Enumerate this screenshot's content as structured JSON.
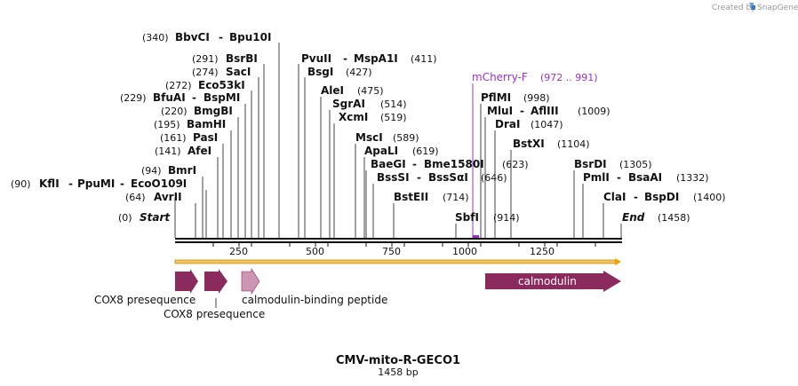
{
  "credit": "Created by",
  "brand": "SnapGene",
  "title": "CMV-mito-R-GECO1",
  "subtitle": "1458 bp",
  "colors": {
    "arrow_dark": "#8b2a5c",
    "arrow_light": "#cc95b4",
    "primer": "#9b30c8",
    "backbone": "#e9a000"
  },
  "ticks": [
    "250",
    "500",
    "750",
    "1000",
    "1250"
  ],
  "sites": [
    {
      "pos": "(340)",
      "name": "BbvCI",
      "alt": "Bpu10I"
    },
    {
      "pos": "(291)",
      "name": "BsrBI"
    },
    {
      "pos": "(274)",
      "name": "SacI"
    },
    {
      "pos": "(272)",
      "name": "Eco53kI"
    },
    {
      "pos": "(229)",
      "name": "BfuAI",
      "alt": "BspMI"
    },
    {
      "pos": "(220)",
      "name": "BmgBI"
    },
    {
      "pos": "(195)",
      "name": "BamHI"
    },
    {
      "pos": "(161)",
      "name": "PasI"
    },
    {
      "pos": "(141)",
      "name": "AfeI"
    },
    {
      "pos": "(94)",
      "name": "BmrI"
    },
    {
      "pos": "(90)",
      "name": "KflI",
      "alt": "PpuMI",
      "alt2": "EcoO109I"
    },
    {
      "pos": "(64)",
      "name": "AvrII"
    },
    {
      "pos": "(0)",
      "name": "Start"
    },
    {
      "name": "PvuII",
      "alt": "MspA1I",
      "pos": "(411)"
    },
    {
      "name": "BsgI",
      "pos": "(427)"
    },
    {
      "name": "AleI",
      "pos": "(475)"
    },
    {
      "name": "SgrAI",
      "pos": "(514)"
    },
    {
      "name": "XcmI",
      "pos": "(519)"
    },
    {
      "name": "MscI",
      "pos": "(589)"
    },
    {
      "name": "ApaLI",
      "pos": "(619)"
    },
    {
      "name": "BaeGI",
      "alt": "Bme1580I",
      "pos": "(623)"
    },
    {
      "name": "BssSI",
      "alt": "BssSαI",
      "pos": "(646)"
    },
    {
      "name": "BstEII",
      "pos": "(714)"
    },
    {
      "name": "SbfI",
      "pos": "(914)"
    },
    {
      "name": "PflMI",
      "pos": "(998)"
    },
    {
      "name": "MluI",
      "alt": "AflIII",
      "pos": "(1009)"
    },
    {
      "name": "DraI",
      "pos": "(1047)"
    },
    {
      "name": "BstXI",
      "pos": "(1104)"
    },
    {
      "name": "BsrDI",
      "pos": "(1305)"
    },
    {
      "name": "PmlI",
      "alt": "BsaAI",
      "pos": "(1332)"
    },
    {
      "name": "ClaI",
      "alt": "BspDI",
      "pos": "(1400)"
    },
    {
      "name": "End",
      "pos": "(1458)"
    }
  ],
  "primer": {
    "name": "mCherry-F",
    "range": "(972 .. 991)"
  },
  "features": [
    {
      "name": "COX8 presequence"
    },
    {
      "name": "COX8 presequence"
    },
    {
      "name": "calmodulin-binding peptide"
    },
    {
      "name": "calmodulin"
    }
  ]
}
